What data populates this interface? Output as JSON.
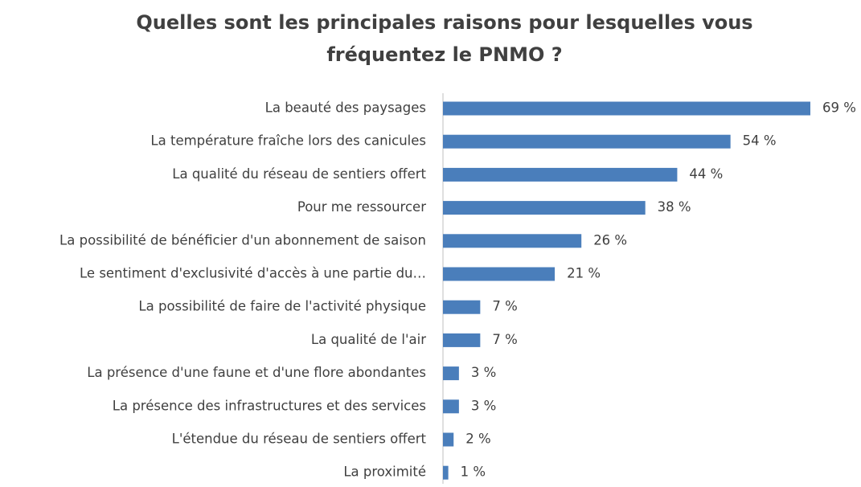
{
  "chart_data": {
    "type": "bar",
    "orientation": "horizontal",
    "title": "Quelles sont les principales raisons pour lesquelles vous fréquentez le PNMO ?",
    "categories": [
      "La beauté des paysages",
      "La température fraîche lors des canicules",
      "La qualité du réseau de sentiers offert",
      "Pour me ressourcer",
      "La possibilité de bénéficier d'un abonnement de saison",
      "Le sentiment d'exclusivité d'accès à une partie du…",
      "La possibilité de faire de l'activité physique",
      "La qualité de l'air",
      "La présence d'une faune et d'une flore abondantes",
      "La présence des infrastructures et des services",
      "L'étendue du réseau de sentiers offert",
      "La proximité"
    ],
    "values": [
      69,
      54,
      44,
      38,
      26,
      21,
      7,
      7,
      3,
      3,
      2,
      1
    ],
    "value_labels": [
      "69 %",
      "54 %",
      "44 %",
      "38 %",
      "26 %",
      "21 %",
      "7 %",
      "7 %",
      "3 %",
      "3 %",
      "2 %",
      "1 %"
    ],
    "color": "#4a7ebb"
  }
}
